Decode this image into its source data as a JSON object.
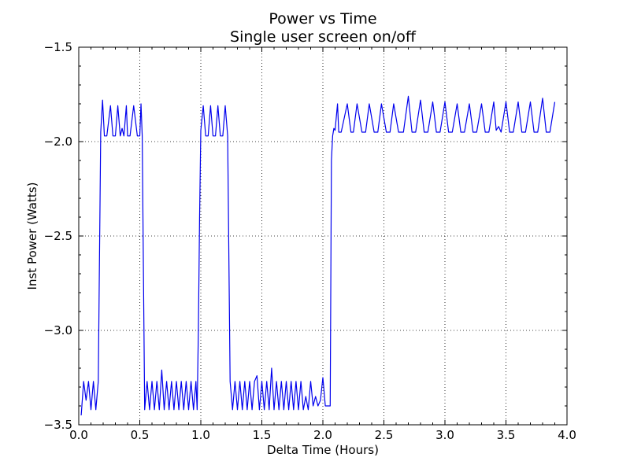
{
  "chart_data": {
    "type": "line",
    "title": "Power vs Time",
    "subtitle": "Single user screen on/off",
    "xlabel": "Delta Time (Hours)",
    "ylabel": "Inst Power (Watts)",
    "xlim": [
      0.0,
      4.0
    ],
    "ylim": [
      -3.5,
      -1.5
    ],
    "xticks": [
      0.0,
      0.5,
      1.0,
      1.5,
      2.0,
      2.5,
      3.0,
      3.5,
      4.0
    ],
    "xtick_labels": [
      "0.0",
      "0.5",
      "1.0",
      "1.5",
      "2.0",
      "2.5",
      "3.0",
      "3.5",
      "4.0"
    ],
    "yticks": [
      -3.5,
      -3.0,
      -2.5,
      -2.0,
      -1.5
    ],
    "ytick_labels": [
      "−3.5",
      "−3.0",
      "−2.5",
      "−2.0",
      "−1.5"
    ],
    "grid": true,
    "grid_style": "dotted",
    "line_color": "#0000ee",
    "series": [
      {
        "x": [
          0.02,
          0.04,
          0.06,
          0.08,
          0.1,
          0.12,
          0.14,
          0.16,
          0.18,
          0.195,
          0.21,
          0.23,
          0.26,
          0.28,
          0.3,
          0.32,
          0.34,
          0.355,
          0.37,
          0.39,
          0.4,
          0.42,
          0.45,
          0.48,
          0.5,
          0.51,
          0.52,
          0.54,
          0.56,
          0.58,
          0.6,
          0.62,
          0.64,
          0.66,
          0.68,
          0.7,
          0.72,
          0.74,
          0.76,
          0.78,
          0.8,
          0.82,
          0.84,
          0.86,
          0.88,
          0.9,
          0.92,
          0.94,
          0.96,
          0.97,
          0.98,
          0.99,
          1.0,
          1.02,
          1.04,
          1.06,
          1.08,
          1.1,
          1.12,
          1.14,
          1.16,
          1.18,
          1.2,
          1.22,
          1.24,
          1.26,
          1.28,
          1.3,
          1.32,
          1.34,
          1.36,
          1.38,
          1.4,
          1.42,
          1.44,
          1.46,
          1.48,
          1.5,
          1.52,
          1.54,
          1.56,
          1.58,
          1.6,
          1.62,
          1.64,
          1.66,
          1.68,
          1.7,
          1.72,
          1.74,
          1.76,
          1.78,
          1.8,
          1.82,
          1.84,
          1.86,
          1.88,
          1.9,
          1.92,
          1.94,
          1.96,
          1.98,
          2.0,
          2.02,
          2.04,
          2.06,
          2.07,
          2.08,
          2.09,
          2.1,
          2.12,
          2.13,
          2.15,
          2.2,
          2.23,
          2.25,
          2.28,
          2.32,
          2.35,
          2.38,
          2.42,
          2.45,
          2.48,
          2.52,
          2.55,
          2.58,
          2.62,
          2.66,
          2.7,
          2.73,
          2.76,
          2.8,
          2.83,
          2.86,
          2.9,
          2.93,
          2.96,
          3.0,
          3.03,
          3.06,
          3.1,
          3.13,
          3.16,
          3.2,
          3.23,
          3.26,
          3.3,
          3.33,
          3.36,
          3.4,
          3.42,
          3.44,
          3.46,
          3.5,
          3.53,
          3.56,
          3.6,
          3.63,
          3.66,
          3.7,
          3.73,
          3.76,
          3.8,
          3.83,
          3.86,
          3.9
        ],
        "y": [
          -3.45,
          -3.27,
          -3.37,
          -3.27,
          -3.42,
          -3.27,
          -3.42,
          -3.27,
          -1.95,
          -1.78,
          -1.97,
          -1.97,
          -1.81,
          -1.97,
          -1.97,
          -1.81,
          -1.97,
          -1.93,
          -1.97,
          -1.81,
          -1.97,
          -1.97,
          -1.81,
          -1.97,
          -1.97,
          -1.8,
          -1.97,
          -3.42,
          -3.27,
          -3.42,
          -3.27,
          -3.42,
          -3.27,
          -3.42,
          -3.21,
          -3.42,
          -3.27,
          -3.42,
          -3.27,
          -3.42,
          -3.27,
          -3.42,
          -3.27,
          -3.42,
          -3.27,
          -3.42,
          -3.27,
          -3.42,
          -3.27,
          -3.42,
          -3.0,
          -2.4,
          -1.94,
          -1.81,
          -1.97,
          -1.97,
          -1.81,
          -1.97,
          -1.97,
          -1.81,
          -1.97,
          -1.97,
          -1.81,
          -1.97,
          -3.27,
          -3.42,
          -3.27,
          -3.42,
          -3.27,
          -3.42,
          -3.27,
          -3.42,
          -3.27,
          -3.42,
          -3.27,
          -3.24,
          -3.42,
          -3.27,
          -3.42,
          -3.27,
          -3.42,
          -3.2,
          -3.42,
          -3.27,
          -3.42,
          -3.27,
          -3.42,
          -3.27,
          -3.42,
          -3.27,
          -3.42,
          -3.27,
          -3.42,
          -3.27,
          -3.42,
          -3.35,
          -3.42,
          -3.27,
          -3.4,
          -3.35,
          -3.4,
          -3.37,
          -3.25,
          -3.4,
          -3.4,
          -3.4,
          -2.1,
          -1.97,
          -1.93,
          -1.94,
          -1.8,
          -1.95,
          -1.95,
          -1.8,
          -1.95,
          -1.95,
          -1.8,
          -1.95,
          -1.95,
          -1.8,
          -1.95,
          -1.95,
          -1.8,
          -1.95,
          -1.95,
          -1.8,
          -1.95,
          -1.95,
          -1.76,
          -1.95,
          -1.95,
          -1.78,
          -1.95,
          -1.95,
          -1.79,
          -1.95,
          -1.95,
          -1.79,
          -1.95,
          -1.95,
          -1.8,
          -1.95,
          -1.95,
          -1.8,
          -1.95,
          -1.95,
          -1.8,
          -1.95,
          -1.95,
          -1.79,
          -1.94,
          -1.92,
          -1.95,
          -1.79,
          -1.95,
          -1.95,
          -1.79,
          -1.95,
          -1.95,
          -1.79,
          -1.95,
          -1.95,
          -1.77,
          -1.95,
          -1.95,
          -1.79
        ]
      }
    ]
  }
}
